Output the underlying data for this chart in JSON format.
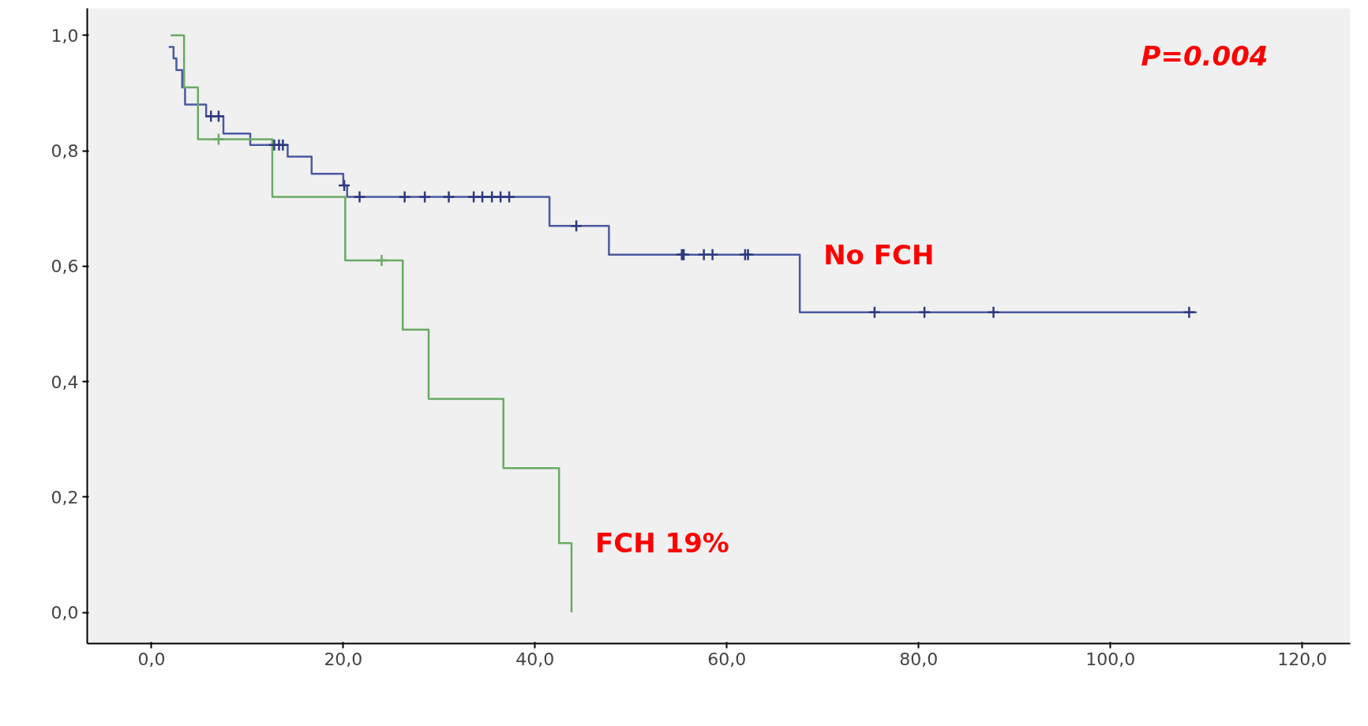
{
  "chart_data": {
    "type": "step",
    "xlim": [
      -6.7,
      125
    ],
    "ylim": [
      -0.054,
      1.047
    ],
    "xticks": [
      {
        "value": 0,
        "label": "0,0"
      },
      {
        "value": 20,
        "label": "20,0"
      },
      {
        "value": 40,
        "label": "40,0"
      },
      {
        "value": 60,
        "label": "60,0"
      },
      {
        "value": 80,
        "label": "80,0"
      },
      {
        "value": 100,
        "label": "100,0"
      },
      {
        "value": 120,
        "label": "120,0"
      }
    ],
    "yticks": [
      {
        "value": 0,
        "label": "0,0"
      },
      {
        "value": 0.2,
        "label": "0,2"
      },
      {
        "value": 0.4,
        "label": "0,4"
      },
      {
        "value": 0.6,
        "label": "0,6"
      },
      {
        "value": 0.8,
        "label": "0,8"
      },
      {
        "value": 1.0,
        "label": "1,0"
      }
    ],
    "grid": false,
    "line_style": "solid",
    "marker": "none",
    "annotations": [
      "P=0.004"
    ],
    "series": [
      {
        "name": "No FCH",
        "color": "#4a5aa0",
        "x": [
          1.8,
          2.3,
          2.6,
          3.2,
          3.5,
          5.7,
          7.5,
          10.3,
          14.2,
          16.7,
          20.0,
          20.4,
          41.5,
          47.7,
          67.6,
          109.0
        ],
        "values": [
          0.98,
          0.96,
          0.94,
          0.91,
          0.88,
          0.86,
          0.83,
          0.81,
          0.79,
          0.76,
          0.74,
          0.72,
          0.67,
          0.62,
          0.52,
          0.52
        ]
      },
      {
        "name": "FCH 19%",
        "color": "#6aaa64",
        "x": [
          2.0,
          3.4,
          4.85,
          12.6,
          20.2,
          26.2,
          28.9,
          36.7,
          42.5,
          43.8
        ],
        "values": [
          1.0,
          0.91,
          0.82,
          0.72,
          0.61,
          0.49,
          0.37,
          0.25,
          0.12,
          0.0
        ]
      },
      {
        "type": "scatter",
        "marker": "cross",
        "color": "#2e3a80",
        "x": [
          6.2,
          7.0,
          12.8,
          13.3,
          13.7,
          20.1,
          21.7,
          26.4,
          28.5,
          31.0,
          33.6,
          34.5,
          35.5,
          36.4,
          37.3,
          44.3,
          55.3,
          55.5,
          57.6,
          58.5,
          61.9,
          62.2,
          75.4,
          80.6,
          87.8,
          108.2
        ],
        "values": [
          0.86,
          0.86,
          0.81,
          0.81,
          0.81,
          0.74,
          0.72,
          0.72,
          0.72,
          0.72,
          0.72,
          0.72,
          0.72,
          0.72,
          0.72,
          0.67,
          0.62,
          0.62,
          0.62,
          0.62,
          0.62,
          0.62,
          0.52,
          0.52,
          0.52,
          0.52
        ]
      },
      {
        "type": "scatter",
        "marker": "cross",
        "color": "#6aaa64",
        "x": [
          7.0,
          24.0
        ],
        "values": [
          0.82,
          0.61
        ]
      }
    ]
  }
}
